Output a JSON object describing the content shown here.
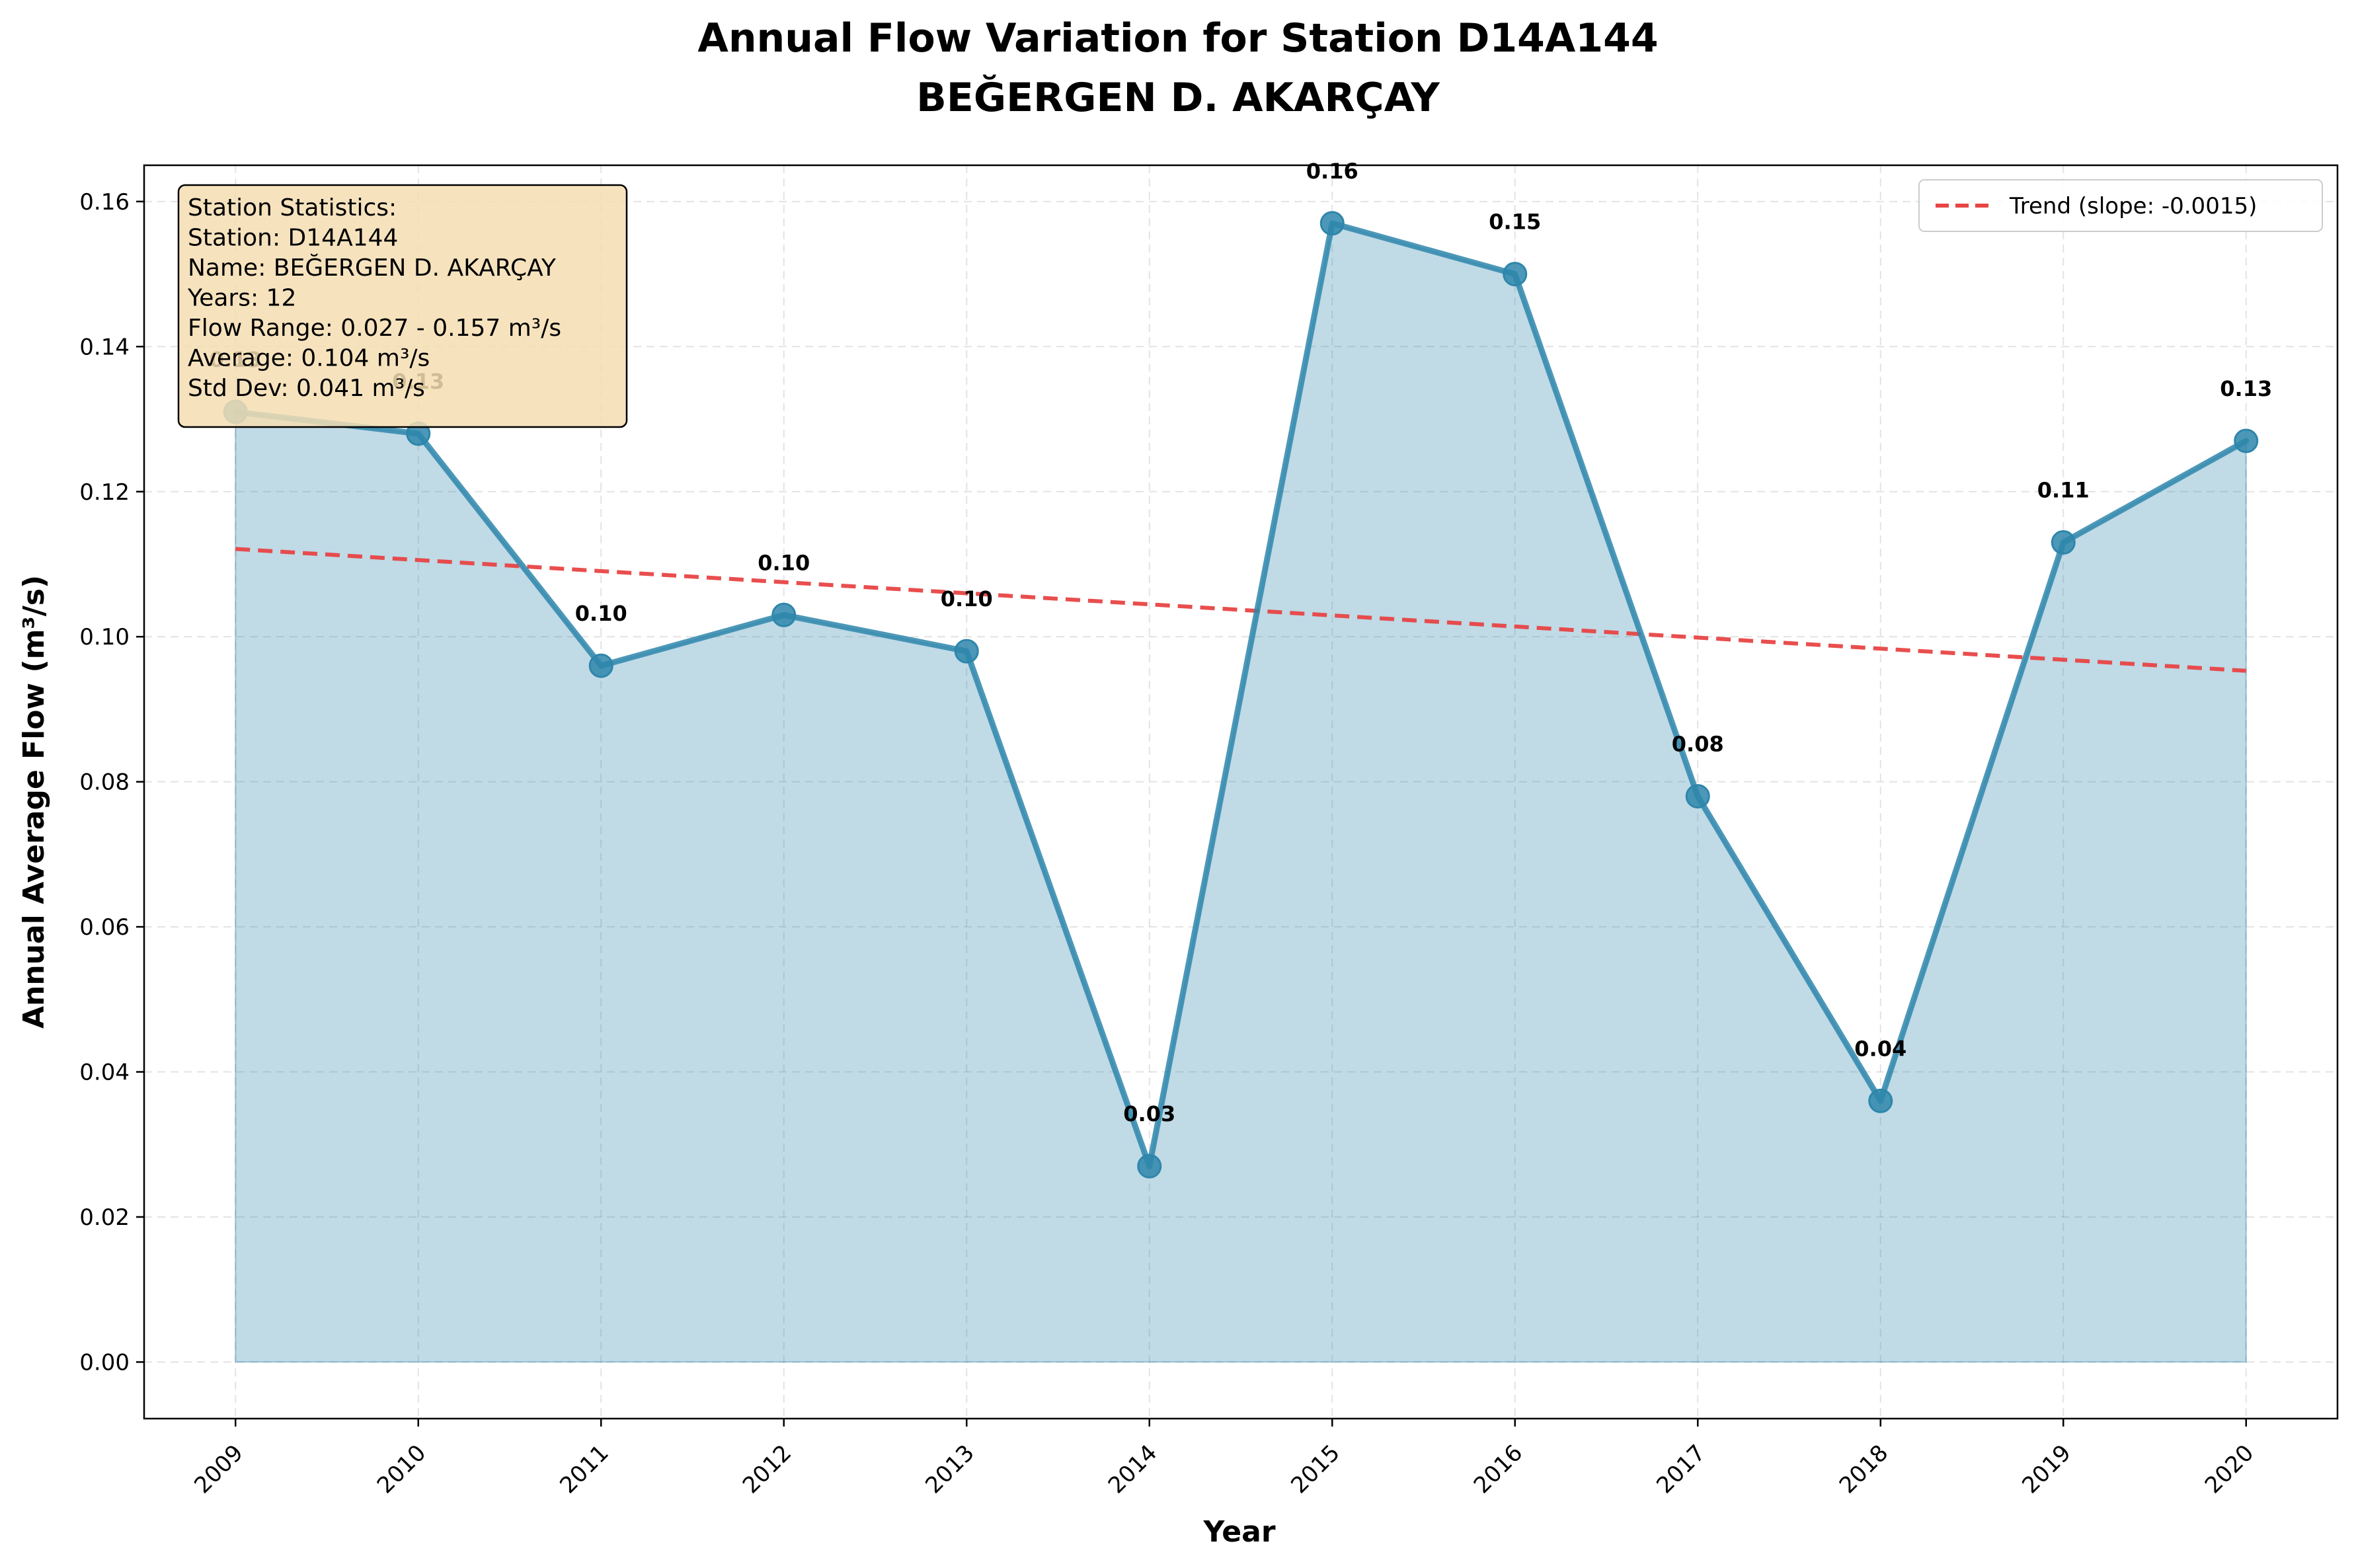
{
  "chart_data": {
    "type": "line",
    "title": [
      "Annual Flow Variation for Station D14A144",
      "BEĞERGEN D. AKARÇAY"
    ],
    "xlabel": "Year",
    "ylabel": "Annual Average Flow (m³/s)",
    "x": [
      2009,
      2010,
      2011,
      2012,
      2013,
      2014,
      2015,
      2016,
      2017,
      2018,
      2019,
      2020
    ],
    "series": [
      {
        "values": [
          0.131,
          0.128,
          0.096,
          0.103,
          0.098,
          0.027,
          0.157,
          0.15,
          0.078,
          0.036,
          0.113,
          0.127
        ],
        "data_labels": [
          "0.13",
          "0.13",
          "0.10",
          "0.10",
          "0.10",
          "0.03",
          "0.16",
          "0.15",
          "0.08",
          "0.04",
          "0.11",
          "0.13"
        ],
        "color": "#2e86ab",
        "fill": true
      }
    ],
    "trend": {
      "name": "Trend (slope: -0.0015)",
      "start": 0.1121,
      "end": 0.0953,
      "color": "#e84545"
    },
    "xlim": [
      2008.5,
      2020.5
    ],
    "ylim": [
      -0.0078,
      0.165
    ],
    "yticks": [
      "0.00",
      "0.02",
      "0.04",
      "0.06",
      "0.08",
      "0.10",
      "0.12",
      "0.14",
      "0.16"
    ],
    "xticks": [
      "2009",
      "2010",
      "2011",
      "2012",
      "2013",
      "2014",
      "2015",
      "2016",
      "2017",
      "2018",
      "2019",
      "2020"
    ],
    "grid": true,
    "legend": "top-right",
    "stats_box": [
      "Station Statistics:",
      "Station: D14A144",
      "Name: BEĞERGEN D. AKARÇAY",
      "Years: 12",
      "Flow Range: 0.027 - 0.157 m³/s",
      "Average: 0.104 m³/s",
      "Std Dev: 0.041 m³/s"
    ]
  }
}
